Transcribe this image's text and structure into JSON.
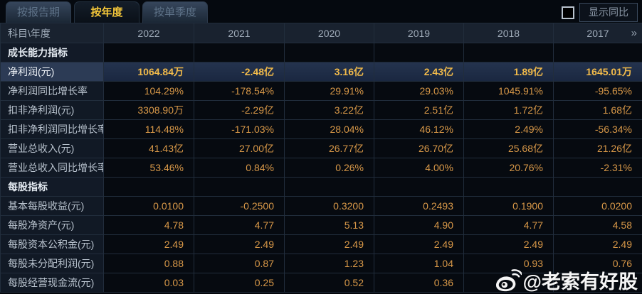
{
  "tabs": [
    {
      "label": "按报告期",
      "active": false
    },
    {
      "label": "按年度",
      "active": true
    },
    {
      "label": "按单季度",
      "active": false
    }
  ],
  "controls": {
    "show_yoy_label": "显示同比",
    "checkbox_checked": false
  },
  "table": {
    "corner_label": "科目\\年度",
    "years": [
      "2022",
      "2021",
      "2020",
      "2019",
      "2018",
      "2017"
    ],
    "more_icon": "»",
    "rows": [
      {
        "type": "section",
        "label": "成长能力指标",
        "values": [
          "",
          "",
          "",
          "",
          "",
          ""
        ]
      },
      {
        "type": "highlight",
        "label": "净利润(元)",
        "values": [
          "1064.84万",
          "-2.48亿",
          "3.16亿",
          "2.43亿",
          "1.89亿",
          "1645.01万"
        ]
      },
      {
        "type": "data",
        "label": "净利润同比增长率",
        "values": [
          "104.29%",
          "-178.54%",
          "29.91%",
          "29.03%",
          "1045.91%",
          "-95.65%"
        ]
      },
      {
        "type": "data",
        "label": "扣非净利润(元)",
        "values": [
          "3308.90万",
          "-2.29亿",
          "3.22亿",
          "2.51亿",
          "1.72亿",
          "1.68亿"
        ]
      },
      {
        "type": "data",
        "label": "扣非净利润同比增长率",
        "values": [
          "114.48%",
          "-171.03%",
          "28.04%",
          "46.12%",
          "2.49%",
          "-56.34%"
        ]
      },
      {
        "type": "data",
        "label": "营业总收入(元)",
        "values": [
          "41.43亿",
          "27.00亿",
          "26.77亿",
          "26.70亿",
          "25.68亿",
          "21.26亿"
        ]
      },
      {
        "type": "data",
        "label": "营业总收入同比增长率",
        "values": [
          "53.46%",
          "0.84%",
          "0.26%",
          "4.00%",
          "20.76%",
          "-2.31%"
        ]
      },
      {
        "type": "section",
        "label": "每股指标",
        "values": [
          "",
          "",
          "",
          "",
          "",
          ""
        ]
      },
      {
        "type": "data",
        "label": "基本每股收益(元)",
        "values": [
          "0.0100",
          "-0.2500",
          "0.3200",
          "0.2493",
          "0.1900",
          "0.0200"
        ]
      },
      {
        "type": "data",
        "label": "每股净资产(元)",
        "values": [
          "4.78",
          "4.77",
          "5.13",
          "4.90",
          "4.77",
          "4.58"
        ]
      },
      {
        "type": "data",
        "label": "每股资本公积金(元)",
        "values": [
          "2.49",
          "2.49",
          "2.49",
          "2.49",
          "2.49",
          "2.49"
        ]
      },
      {
        "type": "data",
        "label": "每股未分配利润(元)",
        "values": [
          "0.88",
          "0.87",
          "1.23",
          "1.04",
          "0.93",
          "0.76"
        ]
      },
      {
        "type": "data",
        "label": "每股经营现金流(元)",
        "values": [
          "0.03",
          "0.25",
          "0.52",
          "0.36",
          "",
          ""
        ]
      }
    ]
  },
  "watermark": {
    "handle": "@老索有好股",
    "icon": "weibo-icon"
  },
  "colors": {
    "accent_yellow": "#f6c83a",
    "value_orange": "#d89848",
    "highlight_row_bg": "#1d2a44",
    "header_bg": "#19222f",
    "grid_line": "#212d3c"
  }
}
